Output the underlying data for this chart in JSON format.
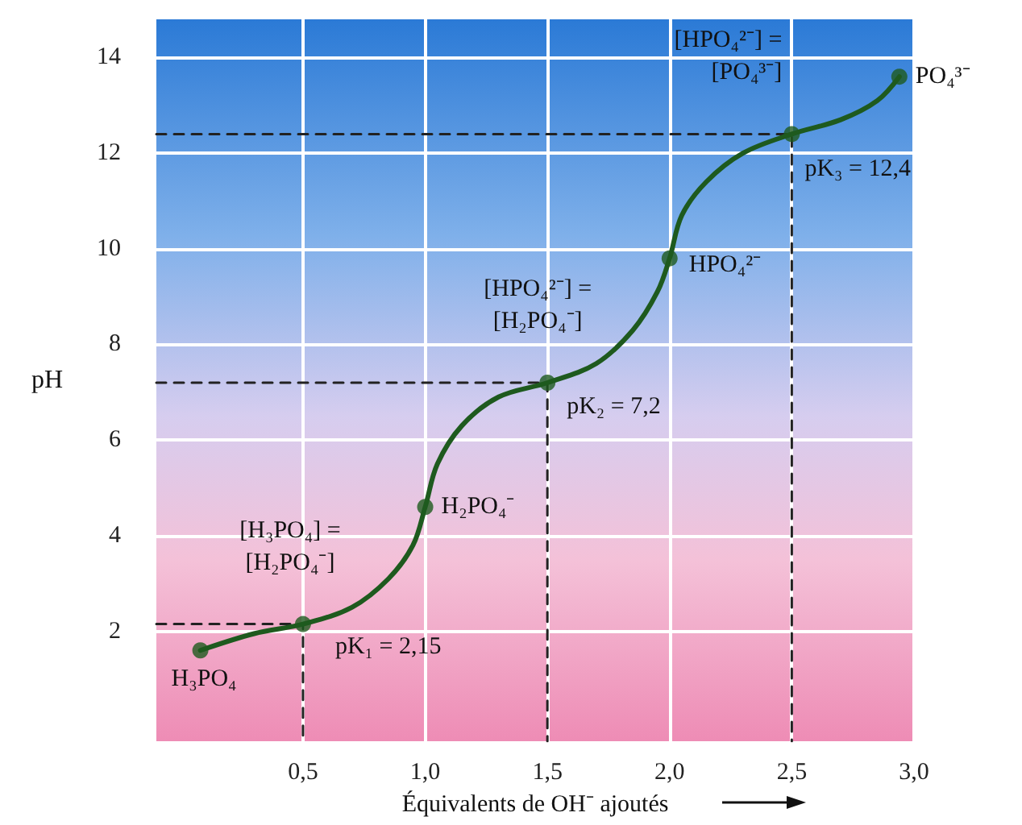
{
  "chart_data": {
    "type": "line",
    "xlabel": "Équivalents de OH⁻ ajoutés",
    "ylabel": "pH",
    "xlim": [
      -0.1,
      3.0
    ],
    "xticks": [
      {
        "value": 0.5,
        "label": "0,5"
      },
      {
        "value": 1.0,
        "label": "1,0"
      },
      {
        "value": 1.5,
        "label": "1,5"
      },
      {
        "value": 2.0,
        "label": "2,0"
      },
      {
        "value": 2.5,
        "label": "2,5"
      },
      {
        "value": 3.0,
        "label": "3,0"
      }
    ],
    "ylim": [
      -0.3,
      14.8
    ],
    "yticks": [
      2,
      4,
      6,
      8,
      10,
      12,
      14
    ],
    "grid": true,
    "line_style": "solid",
    "marker": "none",
    "series": [
      {
        "color": "#1e5a1e",
        "x": [
          0.08,
          0.3,
          0.5,
          0.7,
          0.85,
          0.95,
          1.0,
          1.05,
          1.15,
          1.3,
          1.5,
          1.7,
          1.85,
          1.95,
          2.0,
          2.05,
          2.15,
          2.3,
          2.5,
          2.7,
          2.85,
          2.94
        ],
        "values": [
          1.6,
          1.95,
          2.15,
          2.5,
          3.1,
          3.8,
          4.6,
          5.5,
          6.3,
          6.9,
          7.2,
          7.6,
          8.3,
          9.1,
          9.8,
          10.7,
          11.4,
          12.0,
          12.4,
          12.7,
          13.1,
          13.6
        ]
      },
      {
        "type": "scatter",
        "color": "#1e5a1e",
        "marker": "circle",
        "x": [
          0.08,
          0.5,
          1.0,
          1.5,
          2.0,
          2.5,
          2.94
        ],
        "values": [
          1.6,
          2.15,
          4.6,
          7.2,
          9.8,
          12.4,
          13.6
        ]
      },
      {
        "color": "#222222",
        "line_style": "dashed",
        "x": [
          -0.1,
          0.5,
          0.5
        ],
        "values": [
          2.15,
          2.15,
          -0.3
        ]
      },
      {
        "color": "#222222",
        "line_style": "dashed",
        "x": [
          -0.1,
          1.5,
          1.5
        ],
        "values": [
          7.2,
          7.2,
          -0.3
        ]
      },
      {
        "color": "#222222",
        "line_style": "dashed",
        "x": [
          -0.1,
          2.5,
          2.5
        ],
        "values": [
          12.4,
          12.4,
          -0.3
        ]
      }
    ],
    "annotations": [
      {
        "text": "H₃PO₄",
        "x": 0.08,
        "y": 1.6
      },
      {
        "text": "[H₃PO₄] =\n[H₂PO₄⁻]",
        "x": 0.5,
        "y": 2.15
      },
      {
        "text": "pK₁ = 2,15",
        "x": 0.5,
        "y": 2.15
      },
      {
        "text": "H₂PO₄⁻",
        "x": 1.0,
        "y": 4.6
      },
      {
        "text": "[HPO₄²⁻] =\n[H₂PO₄⁻]",
        "x": 1.5,
        "y": 7.2
      },
      {
        "text": "pK₂ = 7,2",
        "x": 1.5,
        "y": 7.2
      },
      {
        "text": "HPO₄²⁻",
        "x": 2.0,
        "y": 9.8
      },
      {
        "text": "[HPO₄²⁻] =\n[PO₄³⁻]",
        "x": 2.5,
        "y": 12.4
      },
      {
        "text": "pK₃ = 12,4",
        "x": 2.5,
        "y": 12.4
      },
      {
        "text": "PO₄³⁻",
        "x": 2.94,
        "y": 13.6
      }
    ]
  }
}
